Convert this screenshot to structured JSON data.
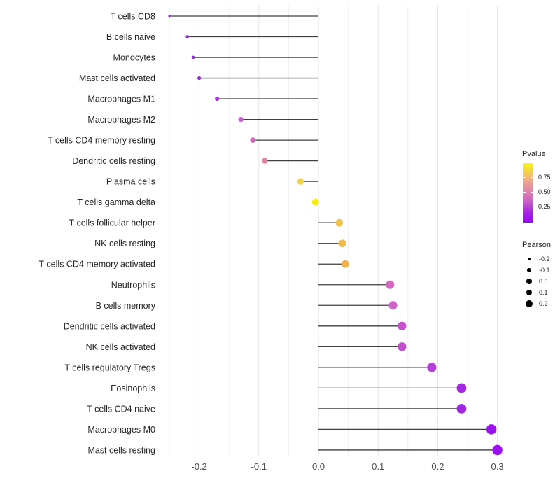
{
  "chart_data": {
    "type": "scatter",
    "variant": "lollipop-horizontal",
    "title": "",
    "xlabel": "",
    "ylabel": "",
    "xlim": [
      -0.2775,
      0.3275
    ],
    "x_ticks": {
      "values": [
        -0.2,
        -0.1,
        0.0,
        0.1,
        0.2,
        0.3
      ],
      "labels": [
        "-0.2",
        "-0.1",
        "0.0",
        "0.1",
        "0.2",
        "0.3"
      ]
    },
    "grid": {
      "minor_step": 0.05,
      "color_major": "#e4e4e4",
      "color_minor": "#efefef",
      "background": "#ffffff"
    },
    "baseline_x": 0.0,
    "stem_color": "#3f3f3f",
    "rows": [
      {
        "label": "T cells CD8",
        "pearson": -0.25,
        "dot_color": "#8b20d8"
      },
      {
        "label": "B cells naive",
        "pearson": -0.22,
        "dot_color": "#8d28d2"
      },
      {
        "label": "Monocytes",
        "pearson": -0.21,
        "dot_color": "#9530d4"
      },
      {
        "label": "Mast cells activated",
        "pearson": -0.2,
        "dot_color": "#8e2ad0"
      },
      {
        "label": "Macrophages M1",
        "pearson": -0.17,
        "dot_color": "#a23ed6"
      },
      {
        "label": "Macrophages M2",
        "pearson": -0.13,
        "dot_color": "#c263c9"
      },
      {
        "label": "T cells CD4 memory resting",
        "pearson": -0.11,
        "dot_color": "#cc6dbe"
      },
      {
        "label": "Dendritic cells resting",
        "pearson": -0.09,
        "dot_color": "#e083a8"
      },
      {
        "label": "Plasma cells",
        "pearson": -0.03,
        "dot_color": "#eed34e"
      },
      {
        "label": "T cells gamma delta",
        "pearson": -0.005,
        "dot_color": "#f3ec16"
      },
      {
        "label": "T cells follicular helper",
        "pearson": 0.035,
        "dot_color": "#eec350"
      },
      {
        "label": "NK cells resting",
        "pearson": 0.04,
        "dot_color": "#eebd4e"
      },
      {
        "label": "T cells CD4 memory activated",
        "pearson": 0.045,
        "dot_color": "#ecb34c"
      },
      {
        "label": "Neutrophils",
        "pearson": 0.12,
        "dot_color": "#d169c0"
      },
      {
        "label": "B cells memory",
        "pearson": 0.125,
        "dot_color": "#cd63c4"
      },
      {
        "label": "Dendritic cells activated",
        "pearson": 0.14,
        "dot_color": "#c654cb"
      },
      {
        "label": "NK cells activated",
        "pearson": 0.14,
        "dot_color": "#c351cd"
      },
      {
        "label": "T cells regulatory  Tregs",
        "pearson": 0.19,
        "dot_color": "#b13fd8"
      },
      {
        "label": "Eosinophils",
        "pearson": 0.24,
        "dot_color": "#a228e2"
      },
      {
        "label": "T cells CD4 naive",
        "pearson": 0.24,
        "dot_color": "#a126e3"
      },
      {
        "label": "Macrophages M0",
        "pearson": 0.29,
        "dot_color": "#9c14ed"
      },
      {
        "label": "Mast cells resting",
        "pearson": 0.3,
        "dot_color": "#9a10f0"
      }
    ],
    "size_scale": {
      "domain": [
        -0.25,
        0.3
      ],
      "r_min": 1.5,
      "r_max": 7.3
    },
    "legend_position": "right"
  },
  "legend_pvalue": {
    "title": "Pvalue",
    "tick_labels": [
      "0.75",
      "0.50",
      "0.25"
    ],
    "tick_fractions_from_top": [
      0.24,
      0.48,
      0.73
    ],
    "gradient_top_to_bottom": [
      "#f9f410",
      "#f2cb5a",
      "#ea9f93",
      "#dd7fb0",
      "#c55bca",
      "#a424e2",
      "#9807f5"
    ]
  },
  "legend_pearson": {
    "title": "Pearson",
    "dot_color": "#000000",
    "items": [
      {
        "label": "-0.2",
        "r": 2.2
      },
      {
        "label": "-0.1",
        "r": 3.0
      },
      {
        "label": "0.0",
        "r": 3.7
      },
      {
        "label": "0.1",
        "r": 4.4
      },
      {
        "label": "0.2",
        "r": 5.0
      }
    ]
  }
}
